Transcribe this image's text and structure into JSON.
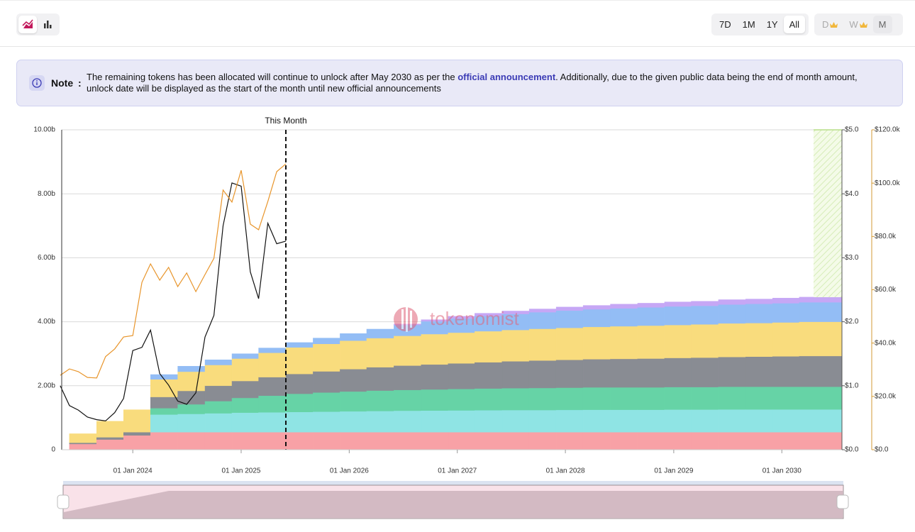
{
  "toolbar": {
    "ranges": [
      "7D",
      "1M",
      "1Y",
      "All"
    ],
    "active_range": "All",
    "intervals": [
      "D",
      "W",
      "M"
    ],
    "premium_intervals": [
      "D",
      "W"
    ]
  },
  "note": {
    "label": "Note",
    "separator": ":",
    "text_before": "The remaining tokens has been allocated will continue to unlock after May 2030 as per the ",
    "link": "official announcement",
    "text_after": ". Additionally, due to the given public data being the end of month amount, unlock date will be displayed as the start of the month until new official announcements"
  },
  "chart_data": {
    "type": "stacked-step-area",
    "watermark": "tokenomist",
    "annotation": {
      "x": "2025-06-01",
      "text": "This Month"
    },
    "xlim": [
      "2023-05-06",
      "2030-07-23"
    ],
    "xticks": [
      {
        "value": "2024-01-01",
        "label": "01 Jan 2024"
      },
      {
        "value": "2025-01-01",
        "label": "01 Jan 2025"
      },
      {
        "value": "2026-01-01",
        "label": "01 Jan 2026"
      },
      {
        "value": "2027-01-01",
        "label": "01 Jan 2027"
      },
      {
        "value": "2028-01-01",
        "label": "01 Jan 2028"
      },
      {
        "value": "2029-01-01",
        "label": "01 Jan 2029"
      },
      {
        "value": "2030-01-01",
        "label": "01 Jan 2030"
      }
    ],
    "ylim": [
      0,
      10
    ],
    "yticks": [
      0,
      {
        "value": 2,
        "label": "2.00b"
      },
      {
        "value": 4,
        "label": "4.00b"
      },
      {
        "value": 6,
        "label": "6.00b"
      },
      {
        "value": 8,
        "label": "8.00b"
      },
      {
        "value": 10,
        "label": "10.00b"
      }
    ],
    "y2lim": [
      0,
      5
    ],
    "y2ticks": [
      {
        "value": 0,
        "label": "$0.0"
      },
      {
        "value": 1,
        "label": "$1.0"
      },
      {
        "value": 2,
        "label": "$2.0"
      },
      {
        "value": 3,
        "label": "$3.0"
      },
      {
        "value": 4,
        "label": "$4.0"
      },
      {
        "value": 5,
        "label": "$5.0"
      }
    ],
    "y3lim": [
      0,
      120
    ],
    "y3ticks": [
      {
        "value": 0,
        "label": "$0.0"
      },
      {
        "value": 20,
        "label": "$20.0k"
      },
      {
        "value": 40,
        "label": "$40.0k"
      },
      {
        "value": 60,
        "label": "$60.0k"
      },
      {
        "value": 80,
        "label": "$80.0k"
      },
      {
        "value": 100,
        "label": "$100.0k"
      },
      {
        "value": 120,
        "label": "$120.0k"
      }
    ],
    "grid": true,
    "x": [
      "2023-06-01",
      "2023-09-01",
      "2023-12-01",
      "2024-03-01",
      "2024-06-01",
      "2024-09-01",
      "2024-12-01",
      "2025-03-01",
      "2025-06-01",
      "2025-09-01",
      "2025-12-01",
      "2026-03-01",
      "2026-06-01",
      "2026-09-01",
      "2026-12-01",
      "2027-03-01",
      "2027-06-01",
      "2027-09-01",
      "2027-12-01",
      "2028-03-01",
      "2028-06-01",
      "2028-09-01",
      "2028-12-01",
      "2029-03-01",
      "2029-06-01",
      "2029-09-01",
      "2029-12-01",
      "2030-03-01"
    ],
    "series": [
      {
        "color": "#f8a1a6",
        "values": [
          0.18,
          0.32,
          0.45,
          0.55,
          0.55,
          0.55,
          0.55,
          0.55,
          0.55,
          0.55,
          0.55,
          0.55,
          0.55,
          0.55,
          0.55,
          0.55,
          0.55,
          0.55,
          0.55,
          0.55,
          0.55,
          0.55,
          0.55,
          0.55,
          0.55,
          0.55,
          0.55,
          0.55
        ]
      },
      {
        "color": "#8fe4e4",
        "values": [
          0,
          0,
          0,
          0.55,
          0.57,
          0.59,
          0.61,
          0.62,
          0.63,
          0.64,
          0.65,
          0.66,
          0.67,
          0.675,
          0.68,
          0.685,
          0.69,
          0.69,
          0.695,
          0.7,
          0.7,
          0.7,
          0.705,
          0.705,
          0.71,
          0.71,
          0.71,
          0.71
        ]
      },
      {
        "color": "#66d3a6",
        "values": [
          0,
          0,
          0,
          0.2,
          0.3,
          0.38,
          0.46,
          0.52,
          0.57,
          0.6,
          0.62,
          0.64,
          0.65,
          0.66,
          0.67,
          0.68,
          0.685,
          0.69,
          0.695,
          0.7,
          0.7,
          0.7,
          0.705,
          0.705,
          0.71,
          0.71,
          0.71,
          0.71
        ]
      },
      {
        "color": "#898c93",
        "values": [
          0.04,
          0.07,
          0.1,
          0.35,
          0.42,
          0.48,
          0.53,
          0.58,
          0.62,
          0.66,
          0.7,
          0.73,
          0.76,
          0.78,
          0.8,
          0.82,
          0.84,
          0.86,
          0.87,
          0.88,
          0.89,
          0.9,
          0.91,
          0.92,
          0.93,
          0.94,
          0.95,
          0.96
        ]
      },
      {
        "color": "#f9dc7d",
        "values": [
          0.28,
          0.5,
          0.7,
          0.55,
          0.6,
          0.65,
          0.7,
          0.76,
          0.83,
          0.86,
          0.89,
          0.91,
          0.93,
          0.95,
          0.96,
          0.97,
          0.98,
          0.99,
          1.0,
          1.01,
          1.02,
          1.03,
          1.03,
          1.04,
          1.05,
          1.05,
          1.06,
          1.07
        ]
      },
      {
        "color": "#93bdf5",
        "values": [
          0,
          0,
          0,
          0.15,
          0.17,
          0.16,
          0.15,
          0.15,
          0.15,
          0.18,
          0.22,
          0.28,
          0.34,
          0.4,
          0.44,
          0.48,
          0.5,
          0.52,
          0.54,
          0.55,
          0.56,
          0.57,
          0.58,
          0.58,
          0.59,
          0.6,
          0.6,
          0.61
        ]
      },
      {
        "color": "#c6a7f5",
        "values": [
          0,
          0,
          0,
          0,
          0,
          0,
          0,
          0,
          0,
          0,
          0,
          0,
          0.03,
          0.05,
          0.07,
          0.08,
          0.09,
          0.1,
          0.11,
          0.12,
          0.13,
          0.13,
          0.14,
          0.14,
          0.15,
          0.15,
          0.16,
          0.16
        ]
      }
    ],
    "lines": [
      {
        "color": "#111111",
        "axis": "y2",
        "x": [
          "2023-05-01",
          "2023-06-01",
          "2023-07-01",
          "2023-08-01",
          "2023-09-01",
          "2023-10-01",
          "2023-11-01",
          "2023-12-01",
          "2024-01-01",
          "2024-02-01",
          "2024-03-01",
          "2024-04-01",
          "2024-05-01",
          "2024-06-01",
          "2024-07-01",
          "2024-08-01",
          "2024-09-01",
          "2024-10-01",
          "2024-11-01",
          "2024-12-01",
          "2025-01-01",
          "2025-02-01",
          "2025-03-01",
          "2025-04-01",
          "2025-05-01",
          "2025-06-01"
        ],
        "values": [
          1.0,
          0.69,
          0.62,
          0.51,
          0.47,
          0.45,
          0.58,
          0.8,
          1.55,
          1.6,
          1.87,
          1.19,
          1.01,
          0.76,
          0.71,
          0.89,
          1.76,
          2.1,
          3.5,
          4.17,
          4.12,
          2.78,
          2.36,
          3.54,
          3.22,
          3.26
        ]
      },
      {
        "color": "#e8952b",
        "axis": "y3",
        "x": [
          "2023-05-01",
          "2023-06-01",
          "2023-07-01",
          "2023-08-01",
          "2023-09-01",
          "2023-10-01",
          "2023-11-01",
          "2023-12-01",
          "2024-01-01",
          "2024-02-01",
          "2024-03-01",
          "2024-04-01",
          "2024-05-01",
          "2024-06-01",
          "2024-07-01",
          "2024-08-01",
          "2024-09-01",
          "2024-10-01",
          "2024-11-01",
          "2024-12-01",
          "2025-01-01",
          "2025-02-01",
          "2025-03-01",
          "2025-04-01",
          "2025-05-01",
          "2025-06-01"
        ],
        "values": [
          27.9,
          30.3,
          29.3,
          27.1,
          26.9,
          34.9,
          37.8,
          42.3,
          42.8,
          62.8,
          69.7,
          63.6,
          68.4,
          61.2,
          66.3,
          59.3,
          65.7,
          71.8,
          97.4,
          92.9,
          104.8,
          84.6,
          82.5,
          93.1,
          104.3,
          107.2
        ]
      }
    ]
  }
}
